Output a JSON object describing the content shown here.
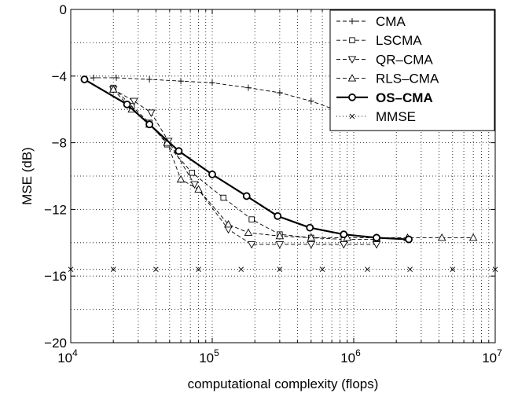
{
  "chart_data": {
    "type": "line",
    "title": "",
    "xlabel": "computational complexity (flops)",
    "ylabel": "MSE (dB)",
    "xscale": "log",
    "xlim": [
      10000,
      10000000
    ],
    "ylim": [
      -20,
      0
    ],
    "x_ticks": [
      {
        "value": 10000,
        "base": "10",
        "exp": "4"
      },
      {
        "value": 100000,
        "base": "10",
        "exp": "5"
      },
      {
        "value": 1000000,
        "base": "10",
        "exp": "6"
      },
      {
        "value": 10000000,
        "base": "10",
        "exp": "7"
      }
    ],
    "y_ticks": [
      {
        "value": 0,
        "label": "0"
      },
      {
        "value": -4,
        "label": "−4"
      },
      {
        "value": -8,
        "label": "−8"
      },
      {
        "value": -12,
        "label": "−12"
      },
      {
        "value": -16,
        "label": "−16"
      },
      {
        "value": -20,
        "label": "−20"
      }
    ],
    "grid": true,
    "legend_position": "top-right",
    "series": [
      {
        "name": "CMA",
        "line_style": "dashed",
        "marker": "plus",
        "bold": false,
        "points": [
          [
            12500,
            -4.2
          ],
          [
            14500,
            -4.1
          ],
          [
            21000,
            -4.1
          ],
          [
            36000,
            -4.2
          ],
          [
            60000,
            -4.3
          ],
          [
            100000,
            -4.4
          ],
          [
            180000,
            -4.7
          ],
          [
            300000,
            -5.0
          ],
          [
            500000,
            -5.5
          ],
          [
            850000,
            -6.2
          ]
        ]
      },
      {
        "name": "LSCMA",
        "line_style": "dashed",
        "marker": "square",
        "bold": false,
        "points": [
          [
            20000,
            -4.7
          ],
          [
            27000,
            -5.8
          ],
          [
            36000,
            -6.8
          ],
          [
            48000,
            -8.1
          ],
          [
            72000,
            -9.8
          ],
          [
            120000,
            -11.3
          ],
          [
            190000,
            -12.6
          ],
          [
            300000,
            -13.5
          ],
          [
            500000,
            -13.7
          ],
          [
            850000,
            -13.8
          ],
          [
            1450000,
            -13.8
          ]
        ]
      },
      {
        "name": "QR–CMA",
        "line_style": "dashed",
        "marker": "triangle-down",
        "bold": false,
        "points": [
          [
            20000,
            -4.8
          ],
          [
            28000,
            -5.5
          ],
          [
            37000,
            -6.2
          ],
          [
            49000,
            -7.9
          ],
          [
            75000,
            -10.5
          ],
          [
            130000,
            -13.2
          ],
          [
            190000,
            -14.1
          ],
          [
            300000,
            -14.1
          ],
          [
            500000,
            -14.1
          ],
          [
            850000,
            -14.1
          ],
          [
            1450000,
            -14.1
          ]
        ]
      },
      {
        "name": "RLS–CMA",
        "line_style": "dashed",
        "marker": "triangle-up",
        "bold": false,
        "points": [
          [
            20000,
            -4.8
          ],
          [
            27000,
            -6.0
          ],
          [
            36000,
            -6.9
          ],
          [
            48000,
            -8.0
          ],
          [
            60000,
            -10.2
          ],
          [
            80000,
            -10.8
          ],
          [
            130000,
            -12.9
          ],
          [
            180000,
            -13.4
          ],
          [
            300000,
            -13.6
          ],
          [
            500000,
            -13.7
          ],
          [
            900000,
            -13.7
          ],
          [
            1450000,
            -13.7
          ],
          [
            2400000,
            -13.7
          ],
          [
            4200000,
            -13.7
          ],
          [
            7000000,
            -13.7
          ]
        ]
      },
      {
        "name": "OS–CMA",
        "line_style": "solid",
        "marker": "circle",
        "bold": true,
        "points": [
          [
            12500,
            -4.2
          ],
          [
            25000,
            -5.7
          ],
          [
            36000,
            -6.9
          ],
          [
            58000,
            -8.5
          ],
          [
            100000,
            -9.9
          ],
          [
            175000,
            -11.2
          ],
          [
            290000,
            -12.4
          ],
          [
            490000,
            -13.1
          ],
          [
            850000,
            -13.5
          ],
          [
            1450000,
            -13.7
          ],
          [
            2450000,
            -13.8
          ]
        ]
      },
      {
        "name": "MMSE",
        "line_style": "dotted",
        "marker": "x",
        "bold": false,
        "points": [
          [
            10000,
            -15.6
          ],
          [
            20000,
            -15.6
          ],
          [
            40000,
            -15.6
          ],
          [
            80000,
            -15.6
          ],
          [
            160000,
            -15.6
          ],
          [
            300000,
            -15.6
          ],
          [
            600000,
            -15.6
          ],
          [
            1250000,
            -15.6
          ],
          [
            2500000,
            -15.6
          ],
          [
            5000000,
            -15.6
          ],
          [
            10000000,
            -15.6
          ]
        ]
      }
    ]
  }
}
